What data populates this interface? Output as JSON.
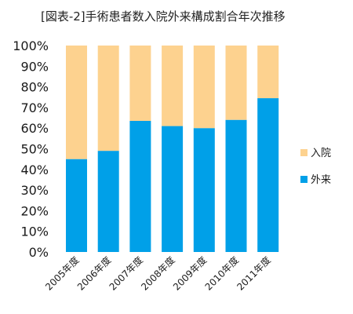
{
  "chart_data": {
    "type": "bar",
    "stacked": true,
    "title": "[図表-2]手術患者数入院外来構成割合年次推移",
    "xlabel": "",
    "ylabel": "",
    "categories": [
      "2005年度",
      "2006年度",
      "2007年度",
      "2008年度",
      "2009年度",
      "2010年度",
      "2011年度"
    ],
    "series": [
      {
        "name": "外来",
        "values": [
          45,
          49,
          63.5,
          61,
          60,
          64,
          74.5
        ],
        "color": "#00a0e8"
      },
      {
        "name": "入院",
        "values": [
          55,
          51,
          36.5,
          39,
          40,
          36,
          25.5
        ],
        "color": "#fdd28f"
      }
    ],
    "ylim": [
      0,
      100
    ],
    "yticks": [
      "0%",
      "10%",
      "20%",
      "30%",
      "40%",
      "50%",
      "60%",
      "70%",
      "80%",
      "90%",
      "100%"
    ],
    "grid": false,
    "legend_position": "right",
    "legend": [
      "入院",
      "外来"
    ]
  }
}
